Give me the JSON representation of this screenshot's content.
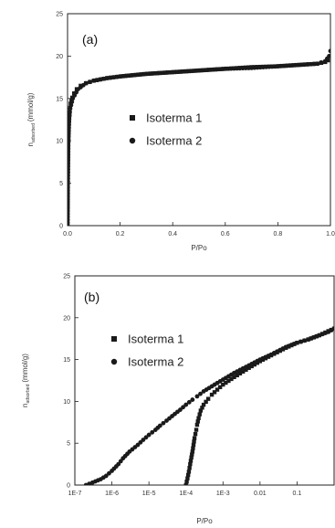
{
  "chart_data": [
    {
      "type": "scatter",
      "panel_label": "(a)",
      "xlabel": "P/Po",
      "ylabel_main": "n",
      "ylabel_sub": "adsorbed",
      "ylabel_unit": "(mmol/g)",
      "xlim": [
        0.0,
        1.0
      ],
      "ylim": [
        0,
        25
      ],
      "x_ticks": [
        0.0,
        0.2,
        0.4,
        0.6,
        0.8,
        1.0
      ],
      "x_tick_labels": [
        "0.0",
        "0.2",
        "0.4",
        "0.6",
        "0.8",
        "1.0"
      ],
      "y_ticks": [
        0,
        5,
        10,
        15,
        20,
        25
      ],
      "y_tick_labels": [
        "0",
        "5",
        "10",
        "15",
        "20",
        "25"
      ],
      "legend": [
        "Isoterma 1",
        "Isoterma 2"
      ],
      "legend_markers": [
        "square",
        "circle"
      ],
      "series": [
        {
          "name": "Isoterma 1",
          "marker": "square",
          "x": [
            0.0,
            0.0005,
            0.001,
            0.002,
            0.003,
            0.005,
            0.008,
            0.012,
            0.018,
            0.025,
            0.035,
            0.05,
            0.07,
            0.1,
            0.15,
            0.2,
            0.3,
            0.4,
            0.5,
            0.6,
            0.7,
            0.8,
            0.9,
            0.95,
            0.98,
            0.99
          ],
          "y": [
            0.0,
            2.0,
            5.0,
            8.0,
            10.0,
            12.0,
            13.4,
            14.4,
            15.1,
            15.6,
            16.1,
            16.5,
            16.8,
            17.1,
            17.4,
            17.6,
            17.9,
            18.1,
            18.3,
            18.5,
            18.7,
            18.8,
            19.0,
            19.1,
            19.3,
            19.5
          ]
        },
        {
          "name": "Isoterma 2",
          "marker": "circle",
          "x": [
            0.0,
            0.001,
            0.003,
            0.006,
            0.01,
            0.02,
            0.04,
            0.07,
            0.1,
            0.15,
            0.2,
            0.3,
            0.4,
            0.5,
            0.6,
            0.7,
            0.8,
            0.9,
            0.95,
            0.98,
            0.995,
            1.0
          ],
          "y": [
            0.0,
            4.5,
            9.8,
            12.6,
            13.8,
            15.0,
            16.1,
            16.8,
            17.1,
            17.4,
            17.6,
            17.9,
            18.1,
            18.3,
            18.5,
            18.6,
            18.8,
            19.0,
            19.1,
            19.4,
            20.0,
            20.6
          ]
        }
      ]
    },
    {
      "type": "scatter",
      "panel_label": "(b)",
      "xlabel": "P/Po",
      "ylabel_main": "n",
      "ylabel_sub": "adsorbed",
      "ylabel_unit": "(mmol/g)",
      "x_scale": "log",
      "xlim": [
        1e-07,
        1.0
      ],
      "ylim": [
        0,
        25
      ],
      "x_ticks": [
        1e-07,
        1e-06,
        1e-05,
        0.0001,
        0.001,
        0.01,
        0.1
      ],
      "x_tick_labels": [
        "1E-7",
        "1E-6",
        "1E-5",
        "1E-4",
        "1E-3",
        "0.01",
        "0.1"
      ],
      "y_ticks": [
        0,
        5,
        10,
        15,
        20,
        25
      ],
      "y_tick_labels": [
        "0",
        "5",
        "10",
        "15",
        "20",
        "25"
      ],
      "legend": [
        "Isoterma 1",
        "Isoterma 2"
      ],
      "legend_markers": [
        "square",
        "circle"
      ],
      "series": [
        {
          "name": "Isoterma 1",
          "marker": "square",
          "x": [
            0.0001,
            0.00011,
            0.00012,
            0.00013,
            0.00014,
            0.00015,
            0.00016,
            0.00017,
            0.00019,
            0.0002,
            0.00022,
            0.00025,
            0.0003,
            0.0004,
            0.0005,
            0.0007,
            0.001,
            0.002,
            0.005,
            0.01,
            0.02,
            0.05,
            0.1,
            0.2,
            0.4,
            0.7,
            1.0
          ],
          "y": [
            0.0,
            0.8,
            1.6,
            2.5,
            3.3,
            4.0,
            4.8,
            5.6,
            6.6,
            7.2,
            8.0,
            8.9,
            9.6,
            10.3,
            10.8,
            11.4,
            12.0,
            12.9,
            14.0,
            14.8,
            15.5,
            16.4,
            17.0,
            17.4,
            17.9,
            18.4,
            18.7
          ]
        },
        {
          "name": "Isoterma 2",
          "marker": "circle",
          "x": [
            2e-07,
            3e-07,
            5e-07,
            7e-07,
            1e-06,
            1.5e-06,
            2e-06,
            3e-06,
            5e-06,
            7e-06,
            1e-05,
            1.5e-05,
            2e-05,
            3e-05,
            5e-05,
            7e-05,
            0.0001,
            0.00015,
            0.0002,
            0.0003,
            0.0005,
            0.0007,
            0.001,
            0.002,
            0.005,
            0.01,
            0.02,
            0.05,
            0.1,
            0.2,
            0.4,
            0.7,
            1.0
          ],
          "y": [
            0.0,
            0.3,
            0.7,
            1.1,
            1.7,
            2.5,
            3.2,
            4.0,
            4.8,
            5.4,
            6.0,
            6.6,
            7.1,
            7.7,
            8.5,
            9.0,
            9.6,
            10.2,
            10.6,
            11.2,
            11.8,
            12.2,
            12.6,
            13.4,
            14.3,
            15.0,
            15.6,
            16.5,
            17.0,
            17.4,
            17.9,
            18.3,
            18.7
          ]
        }
      ]
    }
  ]
}
